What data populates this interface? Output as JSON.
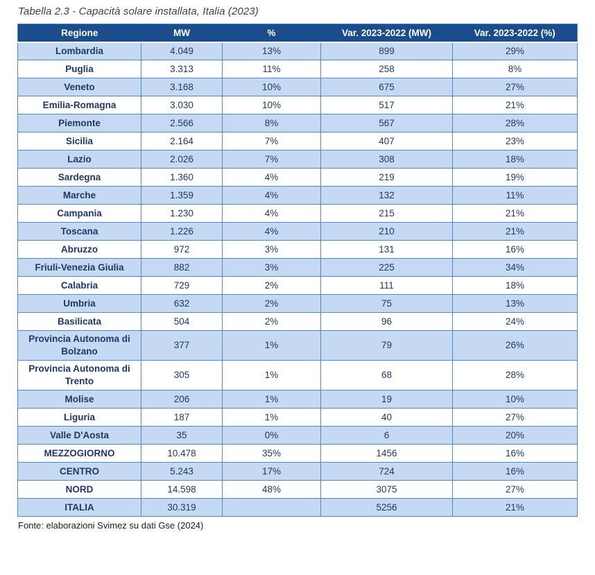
{
  "title": "Tabella 2.3 - Capacità solare installata, Italia (2023)",
  "source": "Fonte: elaborazioni Svimez su dati Gse (2024)",
  "colors": {
    "header_bg": "#1B4D8C",
    "header_text": "#FFFFFF",
    "row_alt_bg": "#C5D9F2",
    "row_bg": "#FFFFFF",
    "border": "#4E86D8",
    "cell_text": "#1F3864"
  },
  "table": {
    "columns": [
      "Regione",
      "MW",
      "%",
      "Var. 2023-2022 (MW)",
      "Var. 2023-2022 (%)"
    ],
    "rows": [
      {
        "region": "Lombardia",
        "mw": "4.049",
        "pct": "13%",
        "var_mw": "899",
        "var_pct": "29%"
      },
      {
        "region": "Puglia",
        "mw": "3.313",
        "pct": "11%",
        "var_mw": "258",
        "var_pct": "8%"
      },
      {
        "region": "Veneto",
        "mw": "3.168",
        "pct": "10%",
        "var_mw": "675",
        "var_pct": "27%"
      },
      {
        "region": "Emilia-Romagna",
        "mw": "3.030",
        "pct": "10%",
        "var_mw": "517",
        "var_pct": "21%"
      },
      {
        "region": "Piemonte",
        "mw": "2.566",
        "pct": "8%",
        "var_mw": "567",
        "var_pct": "28%"
      },
      {
        "region": "Sicilia",
        "mw": "2.164",
        "pct": "7%",
        "var_mw": "407",
        "var_pct": "23%"
      },
      {
        "region": "Lazio",
        "mw": "2.026",
        "pct": "7%",
        "var_mw": "308",
        "var_pct": "18%"
      },
      {
        "region": "Sardegna",
        "mw": "1.360",
        "pct": "4%",
        "var_mw": "219",
        "var_pct": "19%"
      },
      {
        "region": "Marche",
        "mw": "1.359",
        "pct": "4%",
        "var_mw": "132",
        "var_pct": "11%"
      },
      {
        "region": "Campania",
        "mw": "1.230",
        "pct": "4%",
        "var_mw": "215",
        "var_pct": "21%"
      },
      {
        "region": "Toscana",
        "mw": "1.226",
        "pct": "4%",
        "var_mw": "210",
        "var_pct": "21%"
      },
      {
        "region": "Abruzzo",
        "mw": "972",
        "pct": "3%",
        "var_mw": "131",
        "var_pct": "16%"
      },
      {
        "region": "Friuli-Venezia Giulia",
        "mw": "882",
        "pct": "3%",
        "var_mw": "225",
        "var_pct": "34%"
      },
      {
        "region": "Calabria",
        "mw": "729",
        "pct": "2%",
        "var_mw": "111",
        "var_pct": "18%"
      },
      {
        "region": "Umbria",
        "mw": "632",
        "pct": "2%",
        "var_mw": "75",
        "var_pct": "13%"
      },
      {
        "region": "Basilicata",
        "mw": "504",
        "pct": "2%",
        "var_mw": "96",
        "var_pct": "24%"
      },
      {
        "region": "Provincia Autonoma di Bolzano",
        "mw": "377",
        "pct": "1%",
        "var_mw": "79",
        "var_pct": "26%"
      },
      {
        "region": "Provincia Autonoma di Trento",
        "mw": "305",
        "pct": "1%",
        "var_mw": "68",
        "var_pct": "28%"
      },
      {
        "region": "Molise",
        "mw": "206",
        "pct": "1%",
        "var_mw": "19",
        "var_pct": "10%"
      },
      {
        "region": "Liguria",
        "mw": "187",
        "pct": "1%",
        "var_mw": "40",
        "var_pct": "27%"
      },
      {
        "region": "Valle D'Aosta",
        "mw": "35",
        "pct": "0%",
        "var_mw": "6",
        "var_pct": "20%"
      },
      {
        "region": "MEZZOGIORNO",
        "mw": "10.478",
        "pct": "35%",
        "var_mw": "1456",
        "var_pct": "16%"
      },
      {
        "region": "CENTRO",
        "mw": "5.243",
        "pct": "17%",
        "var_mw": "724",
        "var_pct": "16%"
      },
      {
        "region": "NORD",
        "mw": "14.598",
        "pct": "48%",
        "var_mw": "3075",
        "var_pct": "27%"
      },
      {
        "region": "ITALIA",
        "mw": "30.319",
        "pct": "",
        "var_mw": "5256",
        "var_pct": "21%"
      }
    ]
  }
}
